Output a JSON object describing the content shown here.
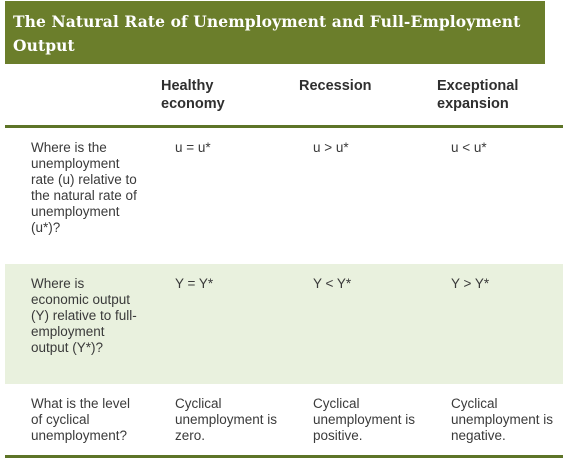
{
  "title": "The Natural Rate of Unemployment and Full-Employment Output",
  "columns": [
    "Healthy economy",
    "Recession",
    "Exceptional expansion"
  ],
  "rows": [
    {
      "question": "Where is the unemployment rate (u) relative to the natural rate of unemployment (u*)?",
      "cells": [
        "u = u*",
        "u > u*",
        "u < u*"
      ]
    },
    {
      "question": "Where is economic output (Y) relative to full-employment output (Y*)?",
      "cells": [
        "Y = Y*",
        "Y < Y*",
        "Y > Y*"
      ]
    },
    {
      "question": "What is the level of cyclical unemployment?",
      "cells": [
        "Cyclical unemployment is zero.",
        "Cyclical unemployment is positive.",
        "Cyclical unemployment is negative."
      ]
    }
  ],
  "colors": {
    "title_background": "#6b7e2b",
    "rule": "#5d7427",
    "shaded_row": "#e9f1de"
  }
}
